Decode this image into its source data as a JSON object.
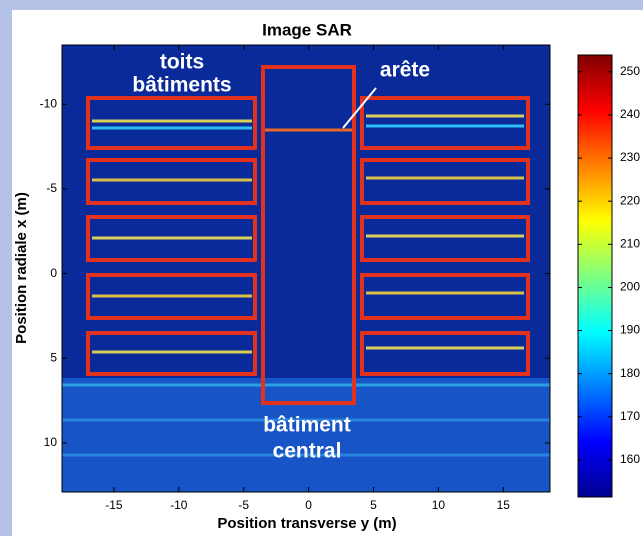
{
  "chart_data": {
    "type": "image",
    "title": "Image SAR",
    "xlabel": "Position transverse y (m)",
    "ylabel": "Position radiale x (m)",
    "xlim": [
      -19,
      18.6
    ],
    "xticks": [
      -15,
      -10,
      -5,
      0,
      5,
      10,
      15
    ],
    "ylim": [
      -13.5,
      12.9
    ],
    "yticks": [
      -10,
      -5,
      0,
      5,
      10
    ],
    "yreversed": true,
    "clim": [
      151.4,
      253.9
    ],
    "cticks": [
      160,
      170,
      180,
      190,
      200,
      210,
      220,
      230,
      240,
      250
    ],
    "colormap": "jet",
    "annotations": [
      "toits",
      "bâtiments",
      "arête",
      "bâtiment",
      "central"
    ]
  }
}
